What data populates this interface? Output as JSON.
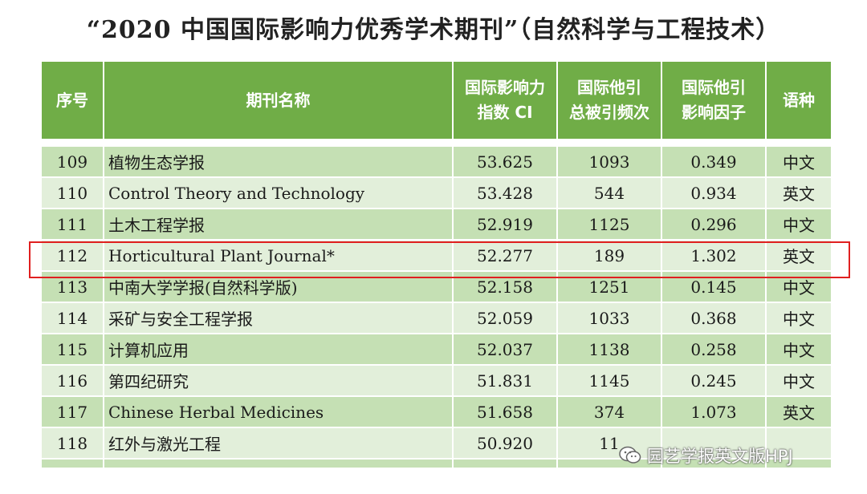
{
  "title": "“2020 中国国际影响力优秀学术期刊”（自然科学与工程技术）",
  "table": {
    "headers": {
      "seq": "序号",
      "name": "期刊名称",
      "ci_line1": "国际影响力",
      "ci_line2": "指数 CI",
      "cites_line1": "国际他引",
      "cites_line2": "总被引频次",
      "if_line1": "国际他引",
      "if_line2": "影响因子",
      "lang": "语种"
    },
    "rows": [
      {
        "seq": "109",
        "name": "植物生态学报",
        "ci": "53.625",
        "cites": "1093",
        "if": "0.349",
        "lang": "中文"
      },
      {
        "seq": "110",
        "name": "Control Theory and Technology",
        "ci": "53.428",
        "cites": "544",
        "if": "0.934",
        "lang": "英文"
      },
      {
        "seq": "111",
        "name": "土木工程学报",
        "ci": "52.919",
        "cites": "1125",
        "if": "0.296",
        "lang": "中文"
      },
      {
        "seq": "112",
        "name": "Horticultural Plant Journal*",
        "ci": "52.277",
        "cites": "189",
        "if": "1.302",
        "lang": "英文"
      },
      {
        "seq": "113",
        "name": "中南大学学报(自然科学版)",
        "ci": "52.158",
        "cites": "1251",
        "if": "0.145",
        "lang": "中文"
      },
      {
        "seq": "114",
        "name": "采矿与安全工程学报",
        "ci": "52.059",
        "cites": "1033",
        "if": "0.368",
        "lang": "中文"
      },
      {
        "seq": "115",
        "name": "计算机应用",
        "ci": "52.037",
        "cites": "1138",
        "if": "0.258",
        "lang": "中文"
      },
      {
        "seq": "116",
        "name": "第四纪研究",
        "ci": "51.831",
        "cites": "1145",
        "if": "0.245",
        "lang": "中文"
      },
      {
        "seq": "117",
        "name": "Chinese Herbal Medicines",
        "ci": "51.658",
        "cites": "374",
        "if": "1.073",
        "lang": "英文"
      },
      {
        "seq": "118",
        "name": "红外与激光工程",
        "ci": "50.920",
        "cites": "11",
        "if": "",
        "lang": ""
      }
    ]
  },
  "watermark": {
    "text": "园艺学报英文版HPJ",
    "icon": "wechat-icon"
  }
}
